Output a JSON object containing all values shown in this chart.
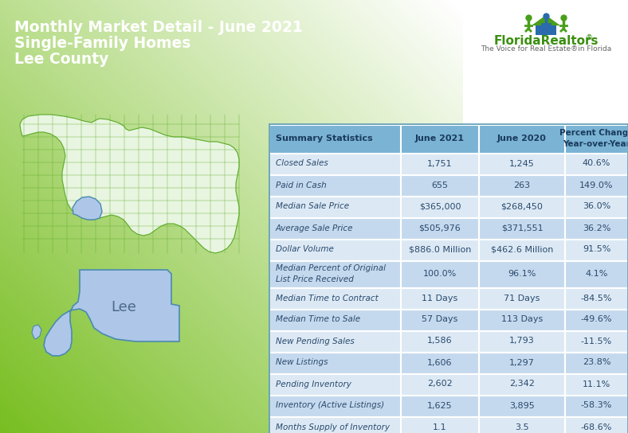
{
  "title_line1": "Monthly Market Detail - June 2021",
  "title_line2": "Single-Family Homes",
  "title_line3": "Lee County",
  "bg_green": "#78be21",
  "bg_green_light": "#a8d44a",
  "table_header_bg": "#7ab3d4",
  "table_row_bg1": "#dce9f5",
  "table_row_bg2": "#c5d9ee",
  "header_text_color": "#1a3a5c",
  "row_text_color": "#2a4a6c",
  "col_headers": [
    "Summary Statistics",
    "June 2021",
    "June 2020",
    "Percent Change\nYear-over-Year"
  ],
  "rows": [
    [
      "Closed Sales",
      "1,751",
      "1,245",
      "40.6%"
    ],
    [
      "Paid in Cash",
      "655",
      "263",
      "149.0%"
    ],
    [
      "Median Sale Price",
      "$365,000",
      "$268,450",
      "36.0%"
    ],
    [
      "Average Sale Price",
      "$505,976",
      "$371,551",
      "36.2%"
    ],
    [
      "Dollar Volume",
      "$886.0 Million",
      "$462.6 Million",
      "91.5%"
    ],
    [
      "Median Percent of Original\nList Price Received",
      "100.0%",
      "96.1%",
      "4.1%"
    ],
    [
      "Median Time to Contract",
      "11 Days",
      "71 Days",
      "-84.5%"
    ],
    [
      "Median Time to Sale",
      "57 Days",
      "113 Days",
      "-49.6%"
    ],
    [
      "New Pending Sales",
      "1,586",
      "1,793",
      "-11.5%"
    ],
    [
      "New Listings",
      "1,606",
      "1,297",
      "23.8%"
    ],
    [
      "Pending Inventory",
      "2,602",
      "2,342",
      "11.1%"
    ],
    [
      "Inventory (Active Listings)",
      "1,625",
      "3,895",
      "-58.3%"
    ],
    [
      "Months Supply of Inventory",
      "1.1",
      "3.5",
      "-68.6%"
    ]
  ],
  "florida_fill": "#e8f5e0",
  "florida_border": "#5aaa28",
  "lee_highlight": "#aec6e8",
  "lee_border": "#4a8ab0",
  "logo_green": "#4a9e1a",
  "logo_blue": "#2a6aad",
  "fr_green": "#3a8f10",
  "fr_blue": "#1a5490"
}
